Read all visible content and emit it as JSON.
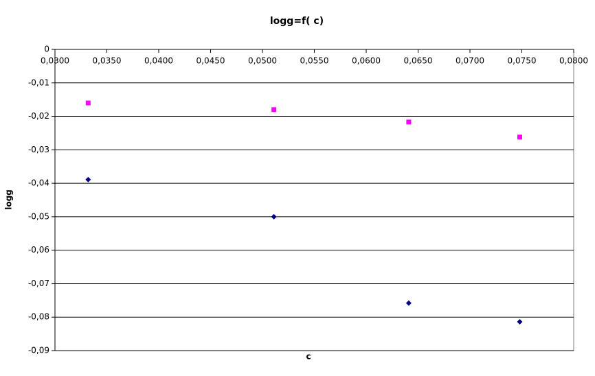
{
  "chart_data": {
    "type": "scatter",
    "title": "logg=f( c)",
    "x_label": "c",
    "y_label": "logg",
    "series": [
      {
        "color": "#ff00ff",
        "marker": "square",
        "x": [
          0.0332,
          0.0511,
          0.0641,
          0.0748
        ],
        "values": [
          -0.016,
          -0.018,
          -0.0217,
          -0.0262
        ]
      },
      {
        "color": "#000080",
        "marker": "diamond",
        "x": [
          0.0332,
          0.0511,
          0.0641,
          0.0748
        ],
        "values": [
          -0.0389,
          -0.05,
          -0.0758,
          -0.0814
        ]
      }
    ],
    "xlim": [
      0.03,
      0.08
    ],
    "xticks": [
      {
        "value": 0.03,
        "label": "0,0300"
      },
      {
        "value": 0.035,
        "label": "0,0350"
      },
      {
        "value": 0.04,
        "label": "0,0400"
      },
      {
        "value": 0.045,
        "label": "0,0450"
      },
      {
        "value": 0.05,
        "label": "0,0500"
      },
      {
        "value": 0.055,
        "label": "0,0550"
      },
      {
        "value": 0.06,
        "label": "0,0600"
      },
      {
        "value": 0.065,
        "label": "0,0650"
      },
      {
        "value": 0.07,
        "label": "0,0700"
      },
      {
        "value": 0.075,
        "label": "0,0750"
      },
      {
        "value": 0.08,
        "label": "0,0800"
      }
    ],
    "ylim": [
      -0.09,
      0
    ],
    "yticks": [
      0,
      {
        "value": -0.01,
        "label": "-0,01"
      },
      {
        "value": -0.02,
        "label": "-0,02"
      },
      {
        "value": -0.03,
        "label": "-0,03"
      },
      {
        "value": -0.04,
        "label": "-0,04"
      },
      {
        "value": -0.05,
        "label": "-0,05"
      },
      {
        "value": -0.06,
        "label": "-0,06"
      },
      {
        "value": -0.07,
        "label": "-0,07"
      },
      {
        "value": -0.08,
        "label": "-0,08"
      },
      {
        "value": -0.09,
        "label": "-0,09"
      }
    ],
    "grid": true
  }
}
